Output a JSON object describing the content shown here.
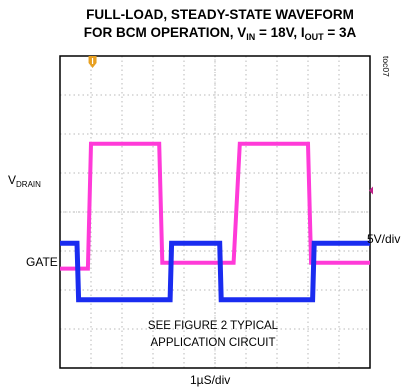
{
  "title_line1": "FULL-LOAD, STEADY-STATE WAVEFORM",
  "title_line2": {
    "prefix": "FOR BCM OPERATION, V",
    "vin_sub": "IN",
    "vin_value": " = 18V, I",
    "iout_sub": "OUT",
    "iout_value": " = 3A"
  },
  "figure_code": "toc07",
  "note_line1": "SEE FIGURE 2 TYPICAL",
  "note_line2": "APPLICATION CIRCUIT",
  "colors": {
    "drain": "#ff3ad8",
    "gate": "#1a2cf0",
    "grid": "#b9b9b9",
    "frame": "#000000",
    "trigger": "#e8a020",
    "ref_marker": "#c0208a"
  },
  "chart_data": {
    "type": "line",
    "x_unit": "µs",
    "xlabel": "1µS/div",
    "ylabel": "5V/div",
    "x_range": [
      0,
      10
    ],
    "y_range_div": [
      -4,
      4
    ],
    "grid": true,
    "series": [
      {
        "name": "V",
        "name_sub": "DRAIN",
        "label_line": 8,
        "x": [
          0,
          0.9,
          1.0,
          3.2,
          3.3,
          5.6,
          5.8,
          8.0,
          8.1,
          10
        ],
        "y_div": [
          -1.45,
          -1.45,
          1.75,
          1.75,
          -1.3,
          -1.3,
          1.75,
          1.75,
          -1.3,
          -1.3
        ]
      },
      {
        "name": "GATE",
        "label_line": 0,
        "x": [
          0,
          0.55,
          0.6,
          3.55,
          3.6,
          5.15,
          5.2,
          8.15,
          8.2,
          10
        ],
        "y_div": [
          -0.8,
          -0.8,
          -2.25,
          -2.25,
          -0.8,
          -0.8,
          -2.25,
          -2.25,
          -0.8,
          -0.8
        ]
      }
    ]
  }
}
